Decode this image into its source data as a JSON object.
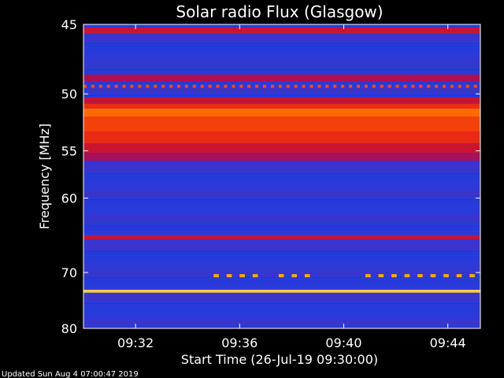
{
  "chart_data": {
    "type": "heatmap",
    "title": "Solar radio Flux (Glasgow)",
    "xlabel": "Start Time (26-Jul-19 09:30:00)",
    "ylabel": "Frequency [MHz]",
    "y_axis": {
      "range": [
        45,
        80
      ],
      "scale": "reciprocal",
      "tick_values": [
        45,
        50,
        55,
        60,
        70,
        80
      ],
      "tick_labels": [
        "45",
        "50",
        "55",
        "60",
        "70",
        "80"
      ]
    },
    "x_axis": {
      "range": [
        "09:30:00",
        "09:45:15"
      ],
      "tick_values": [
        "09:32",
        "09:36",
        "09:40",
        "09:44"
      ],
      "tick_labels": [
        "09:32",
        "09:36",
        "09:40",
        "09:44"
      ]
    },
    "colormap": [
      "#00003a",
      "#0a1a9c",
      "#1f3fe6",
      "#a01060",
      "#e01818",
      "#ff5a00",
      "#ffb000",
      "#fff0a0"
    ],
    "background_intensity": 0.3,
    "bands": [
      {
        "freq_range": [
          45.2,
          45.6
        ],
        "intensity": 0.52
      },
      {
        "freq_range": [
          48.5,
          49.0
        ],
        "intensity": 0.45
      },
      {
        "freq_range": [
          50.3,
          50.8
        ],
        "intensity": 0.5
      },
      {
        "freq_range": [
          50.8,
          51.2
        ],
        "intensity": 0.62
      },
      {
        "freq_range": [
          51.2,
          51.9
        ],
        "intensity": 0.74
      },
      {
        "freq_range": [
          51.9,
          53.2
        ],
        "intensity": 0.66
      },
      {
        "freq_range": [
          53.2,
          54.3
        ],
        "intensity": 0.61
      },
      {
        "freq_range": [
          54.3,
          55.2
        ],
        "intensity": 0.52
      },
      {
        "freq_range": [
          55.2,
          56.0
        ],
        "intensity": 0.44
      },
      {
        "freq_range": [
          64.6,
          65.2
        ],
        "intensity": 0.5
      },
      {
        "freq_range": [
          72.8,
          73.3
        ],
        "intensity": 0.92
      }
    ],
    "intermittent_rows": [
      {
        "freq": 49.4,
        "times": [
          "09:30:00",
          "09:45:15"
        ],
        "period_s": 18,
        "intensity": 0.68
      },
      {
        "freq": 70.5,
        "times": [
          "09:35:00",
          "09:36:50"
        ],
        "period_s": 30,
        "intensity": 0.85
      },
      {
        "freq": 70.5,
        "times": [
          "09:37:30",
          "09:38:50"
        ],
        "period_s": 30,
        "intensity": 0.85
      },
      {
        "freq": 70.5,
        "times": [
          "09:40:50",
          "09:45:15"
        ],
        "period_s": 30,
        "intensity": 0.85
      }
    ],
    "grid": false,
    "legend": "none"
  },
  "footer": {
    "updated_text": "Updated Sun Aug  4 07:00:47 2019"
  }
}
